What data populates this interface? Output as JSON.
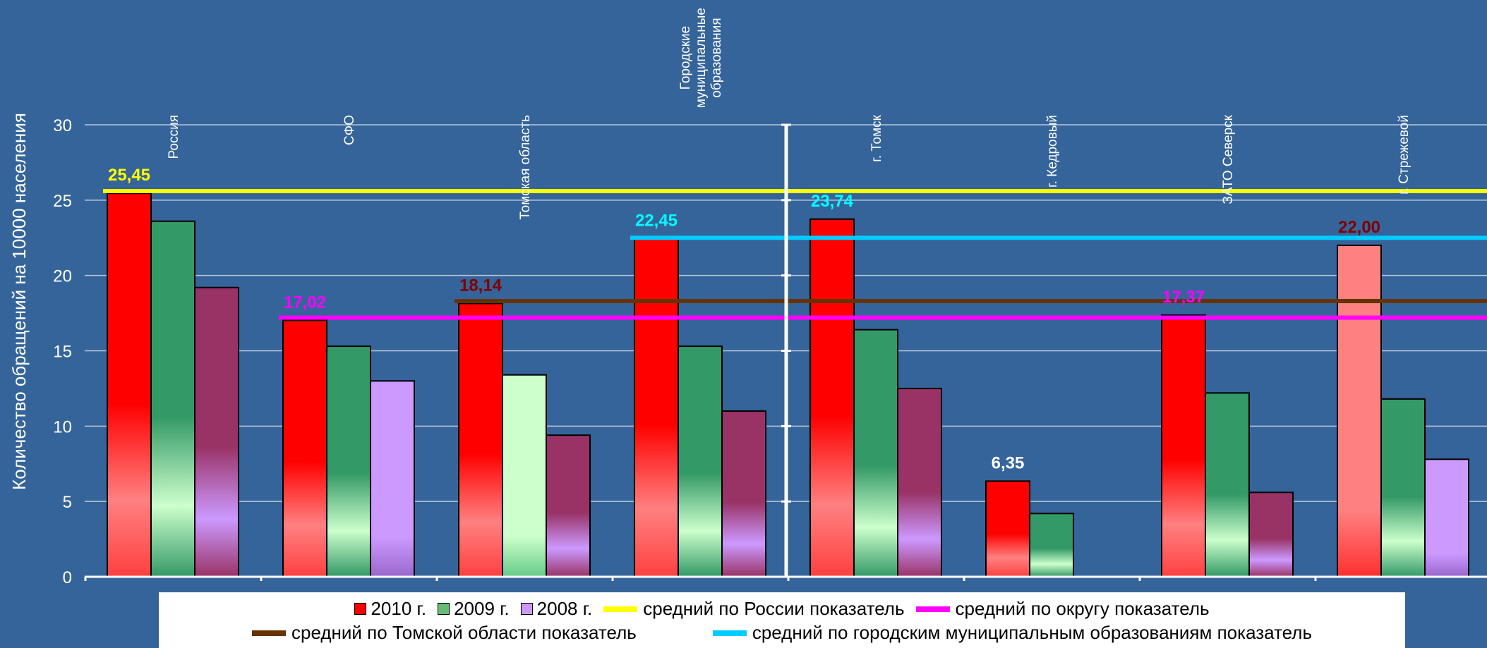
{
  "chart_data": {
    "type": "bar",
    "ylabel": "Количество обращений на 10000 населения",
    "ylim": [
      0,
      30
    ],
    "yticks": [
      0,
      5,
      10,
      15,
      20,
      25,
      30
    ],
    "grid": true,
    "categories": [
      "Россия",
      "СФО",
      "Томская область",
      "Городские муниципальные образования",
      "г. Томск",
      "г. Кедровый",
      "ЗАТО Северск",
      "г. Стрежевой"
    ],
    "category_lines": [
      [
        "Россия"
      ],
      [
        "СФО"
      ],
      [
        "Томская область"
      ],
      [
        "Городские",
        "муниципальные",
        "образования"
      ],
      [
        "г. Томск"
      ],
      [
        "г. Кедровый"
      ],
      [
        "ЗАТО Северск"
      ],
      [
        "г. Стрежевой"
      ]
    ],
    "series": [
      {
        "name": "2010 г.",
        "values": [
          25.45,
          17.02,
          18.14,
          22.45,
          23.74,
          6.35,
          17.37,
          22.0
        ],
        "color": "#ff0000"
      },
      {
        "name": "2009 г.",
        "values": [
          23.6,
          15.3,
          13.4,
          15.3,
          16.4,
          4.2,
          12.2,
          11.8
        ],
        "color": "#339966"
      },
      {
        "name": "2008 г.",
        "values": [
          19.2,
          13.0,
          9.4,
          11.0,
          12.5,
          null,
          5.6,
          7.8
        ],
        "color": "#993366"
      }
    ],
    "value_labels": [
      {
        "text": "25,45",
        "category": 0,
        "color": "#ffff00"
      },
      {
        "text": "17,02",
        "category": 1,
        "color": "#ff00ff"
      },
      {
        "text": "18,14",
        "category": 2,
        "color": "#800000"
      },
      {
        "text": "22,45",
        "category": 3,
        "color": "#00ffff"
      },
      {
        "text": "23,74",
        "category": 4,
        "color": "#00ffff"
      },
      {
        "text": "6,35",
        "category": 5,
        "color": "#ffffff"
      },
      {
        "text": "17,37",
        "category": 6,
        "color": "#ff00ff"
      },
      {
        "text": "22,00",
        "category": 7,
        "color": "#800000"
      }
    ],
    "reference_lines": [
      {
        "name": "средний по России показатель",
        "value": 25.6,
        "start_category": 0,
        "color": "#ffff00"
      },
      {
        "name": "средний по округу показатель",
        "value": 17.2,
        "start_category": 1,
        "color": "#ff00ff"
      },
      {
        "name": "средний по Томской области показатель",
        "value": 18.3,
        "start_category": 2,
        "color": "#663300"
      },
      {
        "name": "средний по городским муниципальным образованиям показатель",
        "value": 22.5,
        "start_category": 3,
        "color": "#00ccff"
      }
    ],
    "legend_position": "bottom"
  }
}
